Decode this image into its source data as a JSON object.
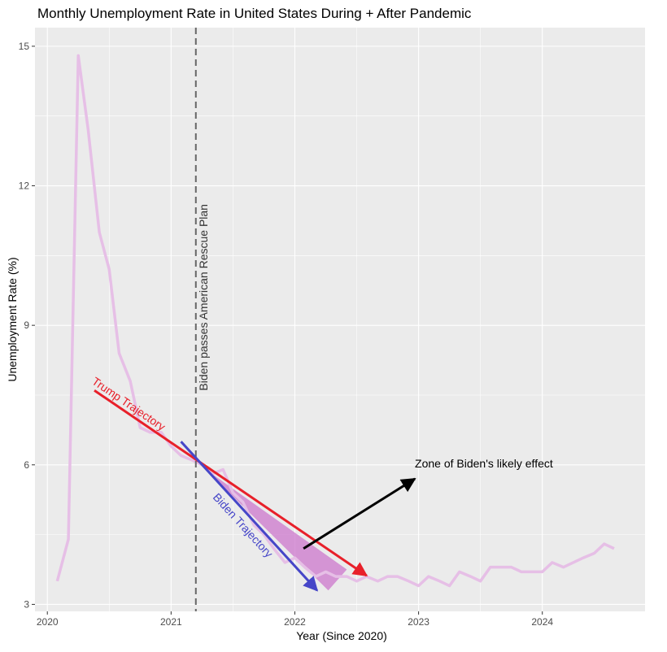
{
  "chart_data": {
    "type": "line",
    "title": "Monthly Unemployment Rate in United States During + After Pandemic",
    "xlabel": "Year (Since 2020)",
    "ylabel": "Unemployment Rate (%)",
    "xlim": [
      2019.9,
      2024.83
    ],
    "ylim": [
      2.85,
      15.4
    ],
    "x_ticks": [
      2020,
      2021,
      2022,
      2023,
      2024
    ],
    "x_tick_labels": [
      "2020",
      "2021",
      "2022",
      "2023",
      "2024"
    ],
    "y_ticks": [
      3,
      6,
      9,
      12,
      15
    ],
    "y_tick_labels": [
      "3",
      "6",
      "9",
      "12",
      "15"
    ],
    "grid": true,
    "legend": "none",
    "colors": {
      "panel": "#ebebeb",
      "grid": "#ffffff",
      "series": "#e6bfe6",
      "trump": "#e8202a",
      "biden": "#4646c8",
      "zone": "#cc77cc",
      "vline": "#666666",
      "arrow": "#000000"
    },
    "series": [
      {
        "x": [
          2020.08,
          2020.17,
          2020.25,
          2020.33,
          2020.42,
          2020.5,
          2020.58,
          2020.67,
          2020.75,
          2020.83,
          2020.92,
          2021.0,
          2021.08,
          2021.17,
          2021.25,
          2021.33,
          2021.42,
          2021.5,
          2021.58,
          2021.67,
          2021.75,
          2021.83,
          2021.92,
          2022.0,
          2022.08,
          2022.17,
          2022.25,
          2022.33,
          2022.42,
          2022.5,
          2022.58,
          2022.67,
          2022.75,
          2022.83,
          2022.92,
          2023.0,
          2023.08,
          2023.17,
          2023.25,
          2023.33,
          2023.42,
          2023.5,
          2023.58,
          2023.67,
          2023.75,
          2023.83,
          2023.92,
          2024.0,
          2024.08,
          2024.17,
          2024.25,
          2024.33,
          2024.42,
          2024.5,
          2024.58
        ],
        "values": [
          3.5,
          4.4,
          14.8,
          13.2,
          11.0,
          10.2,
          8.4,
          7.8,
          6.8,
          6.7,
          6.7,
          6.4,
          6.2,
          6.1,
          6.0,
          5.8,
          5.9,
          5.4,
          5.2,
          4.7,
          4.5,
          4.2,
          3.9,
          4.0,
          3.8,
          3.6,
          3.7,
          3.6,
          3.6,
          3.5,
          3.6,
          3.5,
          3.6,
          3.6,
          3.5,
          3.4,
          3.6,
          3.5,
          3.4,
          3.7,
          3.6,
          3.5,
          3.8,
          3.8,
          3.8,
          3.7,
          3.7,
          3.7,
          3.9,
          3.8,
          3.9,
          4.0,
          4.1,
          4.3,
          4.2
        ]
      }
    ],
    "vline": {
      "x": 2021.2,
      "label": "Biden passes American Rescue Plan"
    },
    "trump_arrow": {
      "from": [
        2020.38,
        7.6
      ],
      "to": [
        2022.58,
        3.62
      ],
      "label": "Trump Trajectory"
    },
    "biden_arrow": {
      "from": [
        2021.08,
        6.5
      ],
      "to": [
        2022.18,
        3.3
      ],
      "label": "Biden Trajectory"
    },
    "zone_polygon": [
      [
        2021.28,
        5.9
      ],
      [
        2022.42,
        3.75
      ],
      [
        2022.27,
        3.3
      ]
    ],
    "zone_arrow": {
      "from": [
        2022.07,
        4.2
      ],
      "to": [
        2022.97,
        5.7
      ],
      "label": "Zone of Biden's likely effect"
    }
  }
}
